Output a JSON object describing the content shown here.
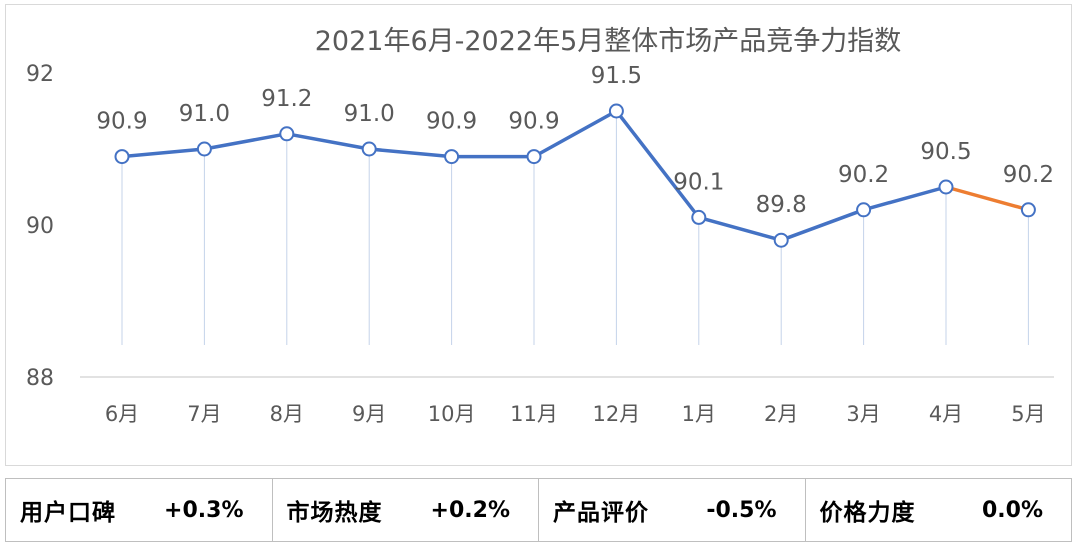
{
  "chart_data": {
    "type": "line",
    "title": "2021年6月-2022年5月整体市场产品竞争力指数",
    "categories": [
      "6月",
      "7月",
      "8月",
      "9月",
      "10月",
      "11月",
      "12月",
      "1月",
      "2月",
      "3月",
      "4月",
      "5月"
    ],
    "values": [
      90.9,
      91.0,
      91.2,
      91.0,
      90.9,
      90.9,
      91.5,
      90.1,
      89.8,
      90.2,
      90.5,
      90.2
    ],
    "data_labels": [
      "90.9",
      "91.0",
      "91.2",
      "91.0",
      "90.9",
      "90.9",
      "91.5",
      "90.1",
      "89.8",
      "90.2",
      "90.5",
      "90.2"
    ],
    "ylim": [
      88,
      92
    ],
    "yticks": [
      "88",
      "90",
      "92"
    ],
    "xlabel": "",
    "ylabel": "",
    "legend": "none",
    "colors": {
      "line": "#4472c4",
      "last_segment": "#ed7d31",
      "marker_fill": "#ffffff",
      "drop_line": "#c5d3ea"
    }
  },
  "stats": [
    {
      "label": "用户口碑",
      "value": "+0.3%"
    },
    {
      "label": "市场热度",
      "value": "+0.2%"
    },
    {
      "label": "产品评价",
      "value": "-0.5%"
    },
    {
      "label": "价格力度",
      "value": "0.0%"
    }
  ]
}
